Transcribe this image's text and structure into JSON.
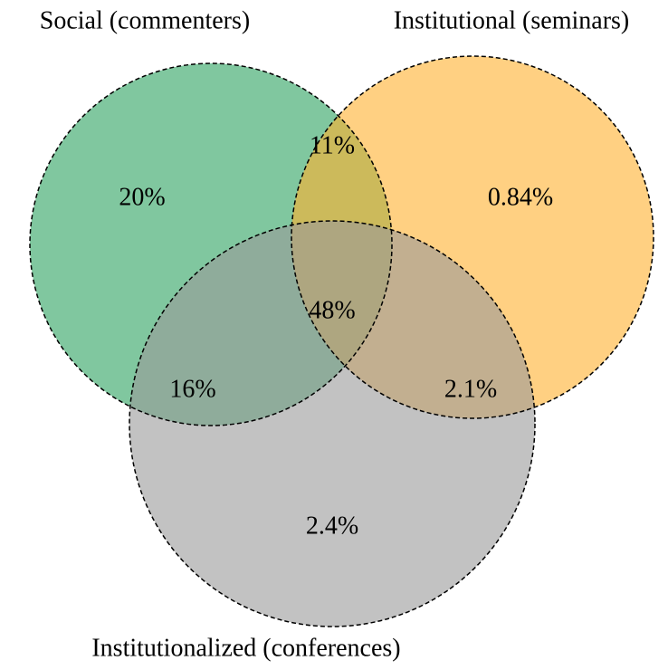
{
  "chart_data": {
    "type": "venn",
    "sets": [
      {
        "name": "Social (commenters)",
        "color": "#2ca25f"
      },
      {
        "name": "Institutional (seminars)",
        "color": "#ffb12f"
      },
      {
        "name": "Institutionalized (conferences)",
        "color": "#999999"
      }
    ],
    "regions": [
      "A",
      "B",
      "C",
      "AB",
      "AC",
      "BC",
      "ABC"
    ],
    "values": [
      20,
      0.84,
      2.4,
      11,
      16,
      2.1,
      48
    ],
    "value_labels": [
      "20%",
      "0.84%",
      "2.4%",
      "11%",
      "16%",
      "2.1%",
      "48%"
    ]
  }
}
